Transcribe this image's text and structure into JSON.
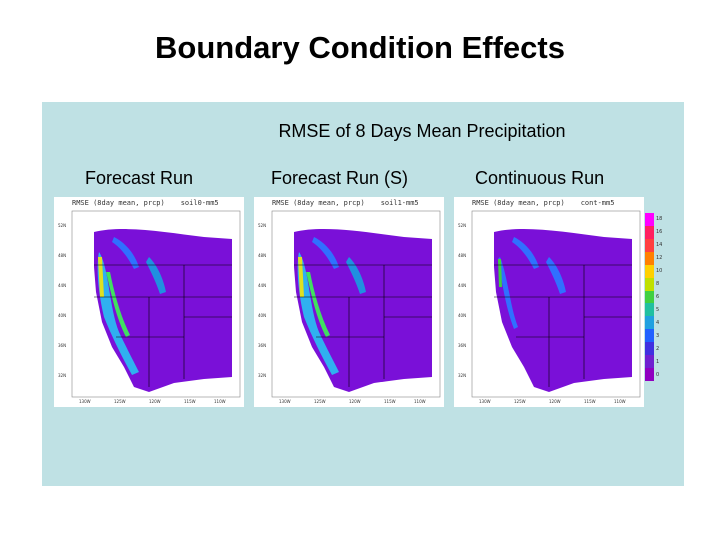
{
  "slide": {
    "title": "Boundary Condition Effects"
  },
  "panel": {
    "subtitle": "RMSE of 8 Days Mean Precipitation"
  },
  "maps": [
    {
      "label": "Forecast Run",
      "header_left": "RMSE (8day mean, prcp)",
      "header_right": "soil0-mm5"
    },
    {
      "label": "Forecast Run (S)",
      "header_left": "RMSE (8day mean, prcp)",
      "header_right": "soil1-mm5"
    },
    {
      "label": "Continuous Run",
      "header_left": "RMSE (8day mean, prcp)",
      "header_right": "cont-mm5"
    }
  ],
  "colorbar": {
    "ticks": [
      "18",
      "16",
      "14",
      "12",
      "10",
      "8",
      "6",
      "5",
      "4",
      "3",
      "2",
      "1",
      "0"
    ],
    "colors": [
      "#ff00ff",
      "#ff2060",
      "#ff4040",
      "#ff8000",
      "#ffd000",
      "#c0e000",
      "#40d040",
      "#20c0a0",
      "#20a0e0",
      "#2060ff",
      "#4030e0",
      "#7020d0",
      "#9000c0"
    ]
  }
}
